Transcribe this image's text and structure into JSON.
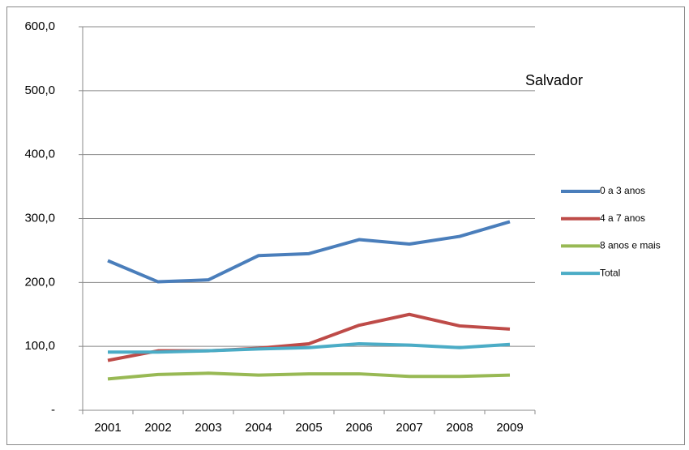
{
  "chart_data": {
    "type": "line",
    "title": "Salvador",
    "categories": [
      "2001",
      "2002",
      "2003",
      "2004",
      "2005",
      "2006",
      "2007",
      "2008",
      "2009"
    ],
    "series": [
      {
        "name": "0 a 3 anos",
        "color": "#4a7ebb",
        "values": [
          234,
          201,
          204,
          242,
          245,
          267,
          260,
          272,
          295
        ]
      },
      {
        "name": "4 a 7 anos",
        "color": "#be4b48",
        "values": [
          78,
          93,
          93,
          97,
          104,
          133,
          150,
          132,
          127
        ]
      },
      {
        "name": "8 anos e mais",
        "color": "#98b954",
        "values": [
          49,
          56,
          58,
          55,
          57,
          57,
          53,
          53,
          55
        ]
      },
      {
        "name": "Total",
        "color": "#4bacc6",
        "values": [
          91,
          91,
          93,
          96,
          98,
          104,
          102,
          98,
          103
        ]
      }
    ],
    "ylim": [
      0,
      600
    ],
    "yticks": [
      {
        "value": 0,
        "label": "-"
      },
      {
        "value": 100,
        "label": "100,0"
      },
      {
        "value": 200,
        "label": "200,0"
      },
      {
        "value": 300,
        "label": "300,0"
      },
      {
        "value": 400,
        "label": "400,0"
      },
      {
        "value": 500,
        "label": "500,0"
      },
      {
        "value": 600,
        "label": "600,0"
      }
    ],
    "grid": true,
    "legend": "right"
  }
}
